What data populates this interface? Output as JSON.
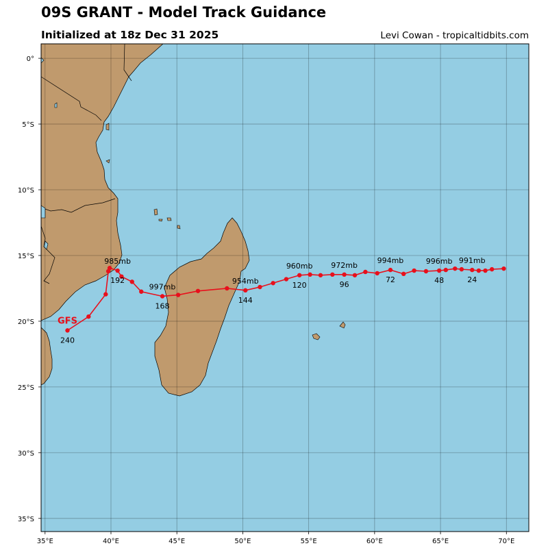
{
  "header": {
    "title": "09S GRANT - Model Track Guidance",
    "subtitle": "Initialized at 18z Dec 31 2025",
    "credit": "Levi Cowan - tropicaltidbits.com"
  },
  "map": {
    "lon_range": [
      34.7,
      71.7
    ],
    "lat_range": [
      -36.0,
      1.1
    ],
    "lon_ticks": [
      35,
      40,
      45,
      50,
      55,
      60,
      65,
      70
    ],
    "lon_tick_labels": [
      "35°E",
      "40°E",
      "45°E",
      "50°E",
      "55°E",
      "60°E",
      "65°E",
      "70°E"
    ],
    "lat_ticks": [
      0,
      -5,
      -10,
      -15,
      -20,
      -25,
      -30,
      -35
    ],
    "lat_tick_labels": [
      "0°",
      "5°S",
      "10°S",
      "15°S",
      "20°S",
      "25°S",
      "30°S",
      "35°S"
    ],
    "grid": true,
    "colors": {
      "ocean": "#94cde3",
      "land": "#c09a6d",
      "track": "#e8101c",
      "border": "#000000"
    }
  },
  "track": {
    "model": "GFS",
    "points": [
      [
        69.8,
        -16.0
      ],
      [
        68.9,
        -16.05
      ],
      [
        68.4,
        -16.15
      ],
      [
        67.9,
        -16.15
      ],
      [
        67.4,
        -16.1
      ],
      [
        66.6,
        -16.05
      ],
      [
        66.1,
        -16.0
      ],
      [
        65.4,
        -16.1
      ],
      [
        64.9,
        -16.15
      ],
      [
        63.9,
        -16.2
      ],
      [
        63.0,
        -16.15
      ],
      [
        62.2,
        -16.4
      ],
      [
        61.2,
        -16.1
      ],
      [
        60.2,
        -16.35
      ],
      [
        59.3,
        -16.25
      ],
      [
        58.5,
        -16.5
      ],
      [
        57.7,
        -16.45
      ],
      [
        56.8,
        -16.45
      ],
      [
        55.9,
        -16.5
      ],
      [
        55.1,
        -16.45
      ],
      [
        54.3,
        -16.5
      ],
      [
        53.3,
        -16.8
      ],
      [
        52.3,
        -17.1
      ],
      [
        51.3,
        -17.4
      ],
      [
        50.2,
        -17.65
      ],
      [
        48.8,
        -17.5
      ],
      [
        46.6,
        -17.7
      ],
      [
        45.1,
        -18.0
      ],
      [
        43.9,
        -18.1
      ],
      [
        42.3,
        -17.75
      ],
      [
        41.6,
        -17.0
      ],
      [
        40.8,
        -16.6
      ],
      [
        40.5,
        -16.15
      ],
      [
        39.9,
        -15.95
      ],
      [
        39.8,
        -16.2
      ],
      [
        39.6,
        -17.95
      ],
      [
        38.3,
        -19.65
      ],
      [
        36.7,
        -20.7
      ]
    ],
    "hour_labels": [
      {
        "text": "24",
        "lon": 67.4,
        "lat": -16.1
      },
      {
        "text": "48",
        "lon": 64.9,
        "lat": -16.15
      },
      {
        "text": "72",
        "lon": 61.2,
        "lat": -16.1
      },
      {
        "text": "96",
        "lon": 57.7,
        "lat": -16.45
      },
      {
        "text": "120",
        "lon": 54.3,
        "lat": -16.5
      },
      {
        "text": "144",
        "lon": 50.2,
        "lat": -17.65
      },
      {
        "text": "168",
        "lon": 43.9,
        "lat": -18.1
      },
      {
        "text": "192",
        "lon": 40.5,
        "lat": -16.15
      },
      {
        "text": "240",
        "lon": 36.7,
        "lat": -20.7
      }
    ],
    "pressure_labels": [
      {
        "text": "991mb",
        "lon": 67.4,
        "lat": -16.1
      },
      {
        "text": "996mb",
        "lon": 64.9,
        "lat": -16.15
      },
      {
        "text": "994mb",
        "lon": 61.2,
        "lat": -16.1
      },
      {
        "text": "972mb",
        "lon": 57.7,
        "lat": -16.45
      },
      {
        "text": "960mb",
        "lon": 54.3,
        "lat": -16.5
      },
      {
        "text": "954mb",
        "lon": 50.2,
        "lat": -17.65
      },
      {
        "text": "997mb",
        "lon": 43.9,
        "lat": -18.1
      },
      {
        "text": "985mb",
        "lon": 40.5,
        "lat": -16.15
      }
    ]
  }
}
